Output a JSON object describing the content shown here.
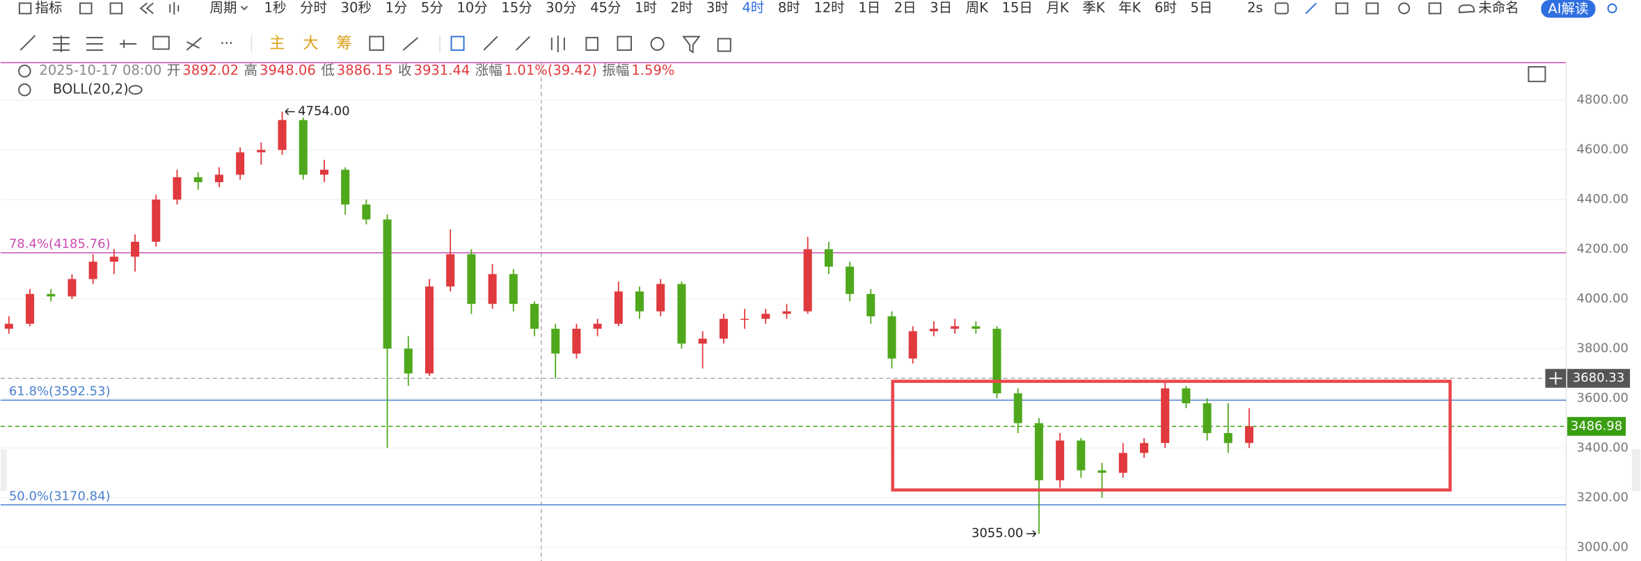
{
  "toolbar": {
    "indicator": "指标",
    "period": "周期",
    "periods": [
      "1秒",
      "分时",
      "30秒",
      "1分",
      "5分",
      "10分",
      "15分",
      "30分",
      "45分",
      "1时",
      "2时",
      "3时",
      "4时",
      "8时",
      "12时",
      "1日",
      "2日",
      "3日",
      "周K",
      "15日",
      "月K",
      "季K",
      "年K",
      "6时",
      "5日"
    ],
    "active_period": 12,
    "refresh": "2s",
    "layout_name": "未命名",
    "ai": "AI解读"
  },
  "drawing_toolbar": {
    "tools": [
      "主",
      "大",
      "筹"
    ]
  },
  "info": {
    "datetime": "2025-10-17 08:00",
    "fields": [
      {
        "label": "开",
        "value": "3892.02"
      },
      {
        "label": "高",
        "value": "3948.06"
      },
      {
        "label": "低",
        "value": "3886.15"
      },
      {
        "label": "收",
        "value": "3931.44"
      },
      {
        "label": "涨幅",
        "value": "1.01%(39.42)"
      },
      {
        "label": "振幅",
        "value": "1.59%"
      }
    ],
    "indicator": "BOLL(20,2)"
  },
  "chart_data": {
    "type": "candlestick",
    "up_color": "#e0393e",
    "down_color": "#4fa81c",
    "ylim": [
      2945,
      4951
    ],
    "yticks": [
      {
        "value": 3000,
        "label": "3000.00"
      },
      {
        "value": 3200,
        "label": "3200.00"
      },
      {
        "value": 3400,
        "label": "3400.00"
      },
      {
        "value": 3600,
        "label": "3600.00"
      },
      {
        "value": 3800,
        "label": "3800.00"
      },
      {
        "value": 4000,
        "label": "4000.00"
      },
      {
        "value": 4200,
        "label": "4200.00"
      },
      {
        "value": 4400,
        "label": "4400.00"
      },
      {
        "value": 4600,
        "label": "4600.00"
      },
      {
        "value": 4800,
        "label": "4800.00"
      }
    ],
    "grid": true,
    "candles": [
      [
        3880,
        3930,
        3860,
        3900
      ],
      [
        3900,
        4040,
        3890,
        4020
      ],
      [
        4020,
        4040,
        3990,
        4010
      ],
      [
        4010,
        4100,
        4000,
        4080
      ],
      [
        4080,
        4180,
        4060,
        4150
      ],
      [
        4150,
        4200,
        4100,
        4170
      ],
      [
        4170,
        4260,
        4110,
        4230
      ],
      [
        4230,
        4420,
        4210,
        4400
      ],
      [
        4400,
        4520,
        4380,
        4490
      ],
      [
        4490,
        4510,
        4440,
        4470
      ],
      [
        4470,
        4530,
        4450,
        4500
      ],
      [
        4500,
        4610,
        4480,
        4590
      ],
      [
        4590,
        4630,
        4540,
        4600
      ],
      [
        4600,
        4754,
        4580,
        4720
      ],
      [
        4720,
        4730,
        4480,
        4500
      ],
      [
        4500,
        4560,
        4470,
        4520
      ],
      [
        4520,
        4530,
        4340,
        4380
      ],
      [
        4380,
        4400,
        4300,
        4320
      ],
      [
        4320,
        4340,
        3400,
        3800
      ],
      [
        3800,
        3850,
        3650,
        3700
      ],
      [
        3700,
        4080,
        3690,
        4050
      ],
      [
        4050,
        4280,
        4030,
        4180
      ],
      [
        4180,
        4200,
        3940,
        3980
      ],
      [
        3980,
        4140,
        3960,
        4100
      ],
      [
        4100,
        4120,
        3950,
        3980
      ],
      [
        3980,
        3990,
        3850,
        3880
      ],
      [
        3880,
        3900,
        3680,
        3780
      ],
      [
        3780,
        3900,
        3760,
        3880
      ],
      [
        3880,
        3920,
        3850,
        3900
      ],
      [
        3900,
        4070,
        3890,
        4030
      ],
      [
        4030,
        4050,
        3920,
        3950
      ],
      [
        3950,
        4080,
        3930,
        4060
      ],
      [
        4060,
        4070,
        3800,
        3820
      ],
      [
        3820,
        3870,
        3720,
        3840
      ],
      [
        3840,
        3940,
        3820,
        3920
      ],
      [
        3920,
        3960,
        3880,
        3920
      ],
      [
        3920,
        3960,
        3900,
        3940
      ],
      [
        3940,
        3980,
        3920,
        3950
      ],
      [
        3950,
        4250,
        3940,
        4200
      ],
      [
        4200,
        4230,
        4100,
        4130
      ],
      [
        4130,
        4150,
        3990,
        4020
      ],
      [
        4020,
        4040,
        3900,
        3930
      ],
      [
        3930,
        3950,
        3720,
        3760
      ],
      [
        3760,
        3890,
        3740,
        3870
      ],
      [
        3870,
        3910,
        3850,
        3880
      ],
      [
        3880,
        3920,
        3860,
        3890
      ],
      [
        3890,
        3910,
        3860,
        3880
      ],
      [
        3880,
        3890,
        3600,
        3620
      ],
      [
        3620,
        3640,
        3460,
        3500
      ],
      [
        3500,
        3520,
        3055,
        3270
      ],
      [
        3270,
        3460,
        3240,
        3430
      ],
      [
        3430,
        3440,
        3280,
        3310
      ],
      [
        3310,
        3340,
        3200,
        3300
      ],
      [
        3300,
        3420,
        3280,
        3380
      ],
      [
        3380,
        3440,
        3360,
        3420
      ],
      [
        3420,
        3670,
        3400,
        3640
      ],
      [
        3640,
        3650,
        3560,
        3580
      ],
      [
        3580,
        3600,
        3430,
        3460
      ],
      [
        3460,
        3580,
        3380,
        3420
      ],
      [
        3420,
        3560,
        3400,
        3486.98
      ]
    ],
    "levels": [
      {
        "label": "78.4%(4185.76)",
        "value": 4185.76,
        "color": "#c94bb0"
      },
      {
        "label": "61.8%(3592.53)",
        "value": 3592.53,
        "color": "#4a80d0"
      },
      {
        "label": "50.0%(3170.84)",
        "value": 3170.84,
        "color": "#4a80d0"
      }
    ],
    "last_price": {
      "value": 3486.98,
      "label": "3486.98",
      "color": "#3a9e12"
    },
    "crosshair_price": {
      "value": 3680.33,
      "label": "3680.33"
    },
    "annotations": [
      {
        "candle": 13,
        "value": 4754,
        "label": "4754.00"
      },
      {
        "candle": 49,
        "value": 3055,
        "label": "3055.00"
      }
    ]
  }
}
